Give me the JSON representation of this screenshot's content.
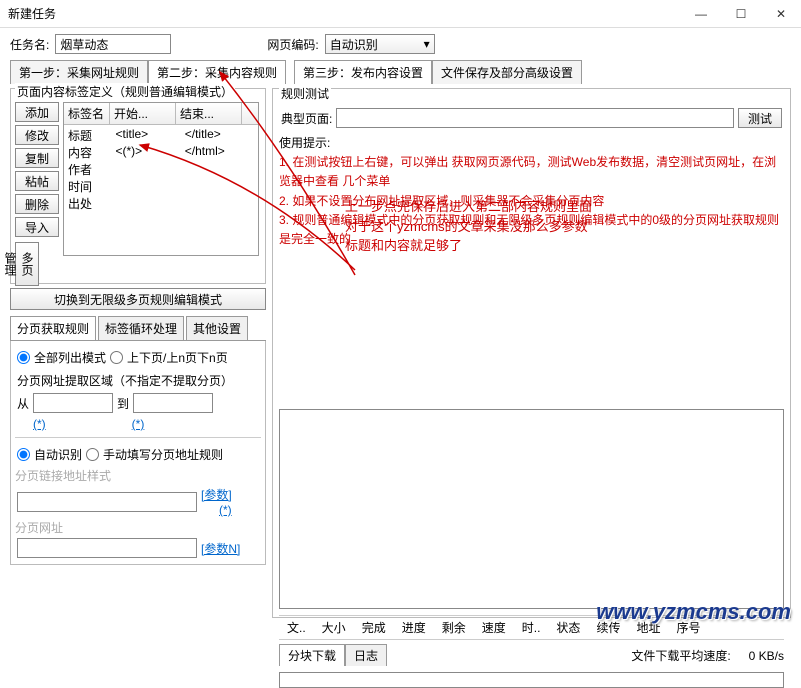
{
  "window": {
    "title": "新建任务"
  },
  "header": {
    "task_label": "任务名:",
    "task_value": "烟草动态",
    "encode_label": "网页编码:",
    "encode_value": "自动识别"
  },
  "steps": {
    "s1": "第一步：采集网址规则",
    "s2": "第二步：采集内容规则",
    "s3": "第三步：发布内容设置",
    "s4": "文件保存及部分高级设置"
  },
  "leftPanel": {
    "title": "页面内容标签定义（规则普通编辑模式）",
    "buttons": {
      "add": "添加",
      "modify": "修改",
      "copy": "复制",
      "paste": "粘帖",
      "delete": "删除",
      "import": "导入"
    },
    "vbtn": "多页管理",
    "cols": {
      "name": "标签名",
      "start": "开始...",
      "end": "结束..."
    },
    "rows": [
      {
        "name": "标题",
        "start": "<title>",
        "end": "</title>"
      },
      {
        "name": "内容",
        "start": "<(*)>",
        "end": "</html>"
      },
      {
        "name": "作者",
        "start": "",
        "end": ""
      },
      {
        "name": "时间",
        "start": "",
        "end": ""
      },
      {
        "name": "出处",
        "start": "",
        "end": ""
      }
    ],
    "switchBtn": "切换到无限级多页规则编辑模式",
    "subtabs": {
      "t1": "分页获取规则",
      "t2": "标签循环处理",
      "t3": "其他设置"
    },
    "radios": {
      "r1": "全部列出模式",
      "r2": "上下页/上n页下n页"
    },
    "zoneLabel": "分页网址提取区域（不指定不提取分页）",
    "from": "从",
    "to": "到",
    "star": "(*)",
    "radios2": {
      "auto": "自动识别",
      "manual": "手动填写分页地址规则"
    },
    "linkStyle": "分页链接地址样式",
    "param": "[参数]",
    "star2": "(*)",
    "pageUrl": "分页网址",
    "paramN": "[参数N]"
  },
  "rightPanel": {
    "title": "规则测试",
    "typical": "典型页面:",
    "testBtn": "测试",
    "usageTitle": "使用提示:",
    "u1": "1. 在测试按钮上右键，可以弹出 获取网页源代码，测试Web发布数据，清空测试页网址，在浏览器中查看 几个菜单",
    "u2": "2. 如果不设置分布网址提取区域，则采集器不会采集分页内容",
    "u3": "3. 规则普通编辑模式中的分页获取规则和无限级多页规则编辑模式中的0级的分页网址获取规则是完全一致的",
    "anno1": "上一步点完保存后进入第二部内容规则里面",
    "anno2": "对于这个yzmcms的文章采集没那么多参数",
    "anno3": "标题和内容就足够了",
    "cols": [
      "文..",
      "大小",
      "完成",
      "进度",
      "剩余",
      "速度",
      "时..",
      "状态",
      "续传",
      "地址",
      "序号"
    ],
    "dlTab1": "分块下载",
    "dlTab2": "日志",
    "speedLabel": "文件下载平均速度:",
    "speedVal": "0 KB/s"
  },
  "watermark": "www.yzmcms.com"
}
